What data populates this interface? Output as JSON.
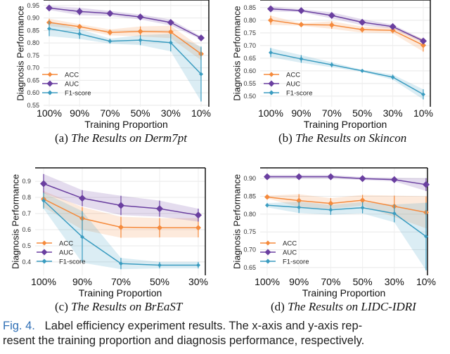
{
  "chart_data": [
    {
      "type": "line",
      "xlabel": "Training Proportion",
      "ylabel": "Diagnosis Performance",
      "categories": [
        "100%",
        "90%",
        "70%",
        "50%",
        "30%",
        "10%"
      ],
      "yticks": [
        "0.55",
        "0.60",
        "0.65",
        "0.70",
        "0.75",
        "0.80",
        "0.85",
        "0.90",
        "0.95"
      ],
      "ylim": [
        0.544,
        0.972
      ],
      "grid": true,
      "legend": "lower-left",
      "series": [
        {
          "name": "ACC",
          "color": "#f58a3c",
          "values": [
            0.882,
            0.865,
            0.842,
            0.846,
            0.844,
            0.756
          ],
          "err": [
            0.015,
            0.01,
            0.012,
            0.02,
            0.025,
            0.025
          ]
        },
        {
          "name": "AUC",
          "color": "#6a3fa0",
          "values": [
            0.94,
            0.926,
            0.918,
            0.904,
            0.882,
            0.82
          ],
          "err": [
            0.008,
            0.015,
            0.01,
            0.01,
            0.012,
            0.006
          ]
        },
        {
          "name": "F1-score",
          "color": "#3a9cc0",
          "values": [
            0.857,
            0.836,
            0.807,
            0.811,
            0.801,
            0.675
          ],
          "err": [
            0.03,
            0.02,
            0.01,
            0.02,
            0.035,
            0.11
          ]
        }
      ]
    },
    {
      "type": "line",
      "xlabel": "Training Proportion",
      "ylabel": "Diagnosis Performance",
      "categories": [
        "100%",
        "90%",
        "70%",
        "50%",
        "30%",
        "10%"
      ],
      "yticks": [
        "0.50",
        "0.55",
        "0.60",
        "0.65",
        "0.70",
        "0.75",
        "0.80",
        "0.85"
      ],
      "ylim": [
        0.458,
        0.88
      ],
      "grid": true,
      "legend": "lower-left",
      "series": [
        {
          "name": "ACC",
          "color": "#f58a3c",
          "values": [
            0.8,
            0.783,
            0.781,
            0.763,
            0.76,
            0.701
          ],
          "err": [
            0.018,
            0.005,
            0.015,
            0.012,
            0.012,
            0.025
          ]
        },
        {
          "name": "AUC",
          "color": "#6a3fa0",
          "values": [
            0.845,
            0.838,
            0.819,
            0.792,
            0.775,
            0.718
          ],
          "err": [
            0.01,
            0.006,
            0.012,
            0.012,
            0.008,
            0.006
          ]
        },
        {
          "name": "F1-score",
          "color": "#3a9cc0",
          "values": [
            0.672,
            0.647,
            0.624,
            0.6,
            0.575,
            0.507
          ],
          "err": [
            0.018,
            0.015,
            0.01,
            0.004,
            0.01,
            0.02
          ]
        }
      ]
    },
    {
      "type": "line",
      "xlabel": "Training Proportion",
      "ylabel": "Diagnosis Performance",
      "categories": [
        "100%",
        "90%",
        "70%",
        "50%",
        "30%"
      ],
      "yticks": [
        "0.4",
        "0.5",
        "0.6",
        "0.7",
        "0.8",
        "0.9"
      ],
      "ylim": [
        0.317,
        0.983
      ],
      "grid": true,
      "legend": "lower-left",
      "series": [
        {
          "name": "ACC",
          "color": "#f58a3c",
          "values": [
            0.79,
            0.67,
            0.615,
            0.612,
            0.612
          ],
          "err": [
            0.05,
            0.07,
            0.065,
            0.06,
            0.06
          ]
        },
        {
          "name": "AUC",
          "color": "#6a3fa0",
          "values": [
            0.885,
            0.795,
            0.75,
            0.73,
            0.69
          ],
          "err": [
            0.06,
            0.05,
            0.06,
            0.05,
            0.04
          ]
        },
        {
          "name": "F1-score",
          "color": "#3a9cc0",
          "values": [
            0.78,
            0.555,
            0.39,
            0.38,
            0.38
          ],
          "err": [
            0.05,
            0.16,
            0.035,
            0.02,
            0.02
          ]
        }
      ]
    },
    {
      "type": "line",
      "xlabel": "Training Proportion",
      "ylabel": "Diagnosis Performance",
      "categories": [
        "100%",
        "90%",
        "70%",
        "50%",
        "30%",
        "10%"
      ],
      "yticks": [
        "0.65",
        "0.70",
        "0.75",
        "0.80",
        "0.85",
        "0.90"
      ],
      "ylim": [
        0.628,
        0.93
      ],
      "grid": true,
      "legend": "lower-left",
      "series": [
        {
          "name": "ACC",
          "color": "#f58a3c",
          "values": [
            0.848,
            0.838,
            0.83,
            0.839,
            0.822,
            0.805
          ],
          "err": [
            0.004,
            0.018,
            0.015,
            0.015,
            0.03,
            0.045
          ]
        },
        {
          "name": "AUC",
          "color": "#6a3fa0",
          "values": [
            0.905,
            0.905,
            0.905,
            0.9,
            0.897,
            0.883
          ],
          "err": [
            0.005,
            0.005,
            0.005,
            0.004,
            0.005,
            0.018
          ]
        },
        {
          "name": "F1-score",
          "color": "#3a9cc0",
          "values": [
            0.825,
            0.819,
            0.812,
            0.818,
            0.802,
            0.737
          ],
          "err": [
            0.006,
            0.016,
            0.014,
            0.016,
            0.025,
            0.095
          ]
        }
      ]
    }
  ],
  "captions": [
    {
      "tag": "(a)",
      "text": "The Results on Derm7pt"
    },
    {
      "tag": "(b)",
      "text": "The Results on Skincon"
    },
    {
      "tag": "(c)",
      "text": "The Results on BrEaST"
    },
    {
      "tag": "(d)",
      "text": "The Results on LIDC-IDRI"
    }
  ],
  "figure_caption": {
    "label": "Fig. 4.",
    "line1": "Label efficiency experiment results. The x-axis and y-axis rep-",
    "line2": "resent the training proportion and diagnosis performance, respectively."
  }
}
